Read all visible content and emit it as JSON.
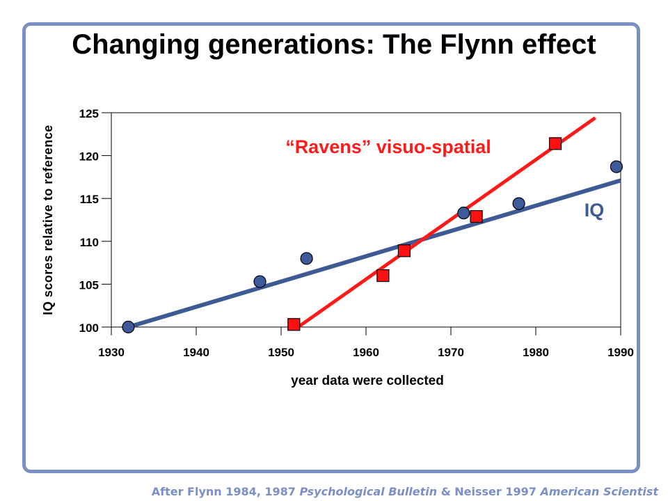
{
  "slide": {
    "title": "Changing generations: The Flynn effect"
  },
  "caption": {
    "prefix": "After Flynn 1984, 1987 ",
    "journal1": "Psychological Bulletin",
    "middle": " & Neisser 1997 ",
    "journal2": "American Scientist"
  },
  "colors": {
    "frame": "#7b8fc7",
    "iq_line": "#3d5a94",
    "iq_marker": "#3f5a9a",
    "ravens": "#ff1a1a",
    "ravens_marker": "#ff1010",
    "axis": "#000000"
  },
  "chart_data": {
    "type": "scatter",
    "xlabel": "year data were collected",
    "ylabel": "IQ scores relative to reference",
    "xlim": [
      1930,
      1990
    ],
    "ylim": [
      100,
      125
    ],
    "xticks": [
      1930,
      1940,
      1950,
      1960,
      1970,
      1980,
      1990
    ],
    "yticks": [
      100,
      105,
      110,
      115,
      120,
      125
    ],
    "grid": false,
    "series": [
      {
        "name": "IQ",
        "marker": "circle",
        "points": [
          {
            "x": 1932,
            "y": 100
          },
          {
            "x": 1947.5,
            "y": 105.3
          },
          {
            "x": 1953,
            "y": 108
          },
          {
            "x": 1971.5,
            "y": 113.3
          },
          {
            "x": 1978,
            "y": 114.4
          },
          {
            "x": 1989.5,
            "y": 118.7
          }
        ],
        "trend": {
          "x": [
            1932,
            1990
          ],
          "y": [
            100,
            117.1
          ]
        }
      },
      {
        "name": "“Ravens” visuo-spatial",
        "marker": "square",
        "points": [
          {
            "x": 1951.5,
            "y": 100.3
          },
          {
            "x": 1962,
            "y": 106
          },
          {
            "x": 1964.5,
            "y": 108.9
          },
          {
            "x": 1973,
            "y": 112.9
          },
          {
            "x": 1982.3,
            "y": 121.4
          }
        ],
        "trend": {
          "x": [
            1952,
            1987
          ],
          "y": [
            100,
            124.4
          ]
        }
      }
    ]
  }
}
